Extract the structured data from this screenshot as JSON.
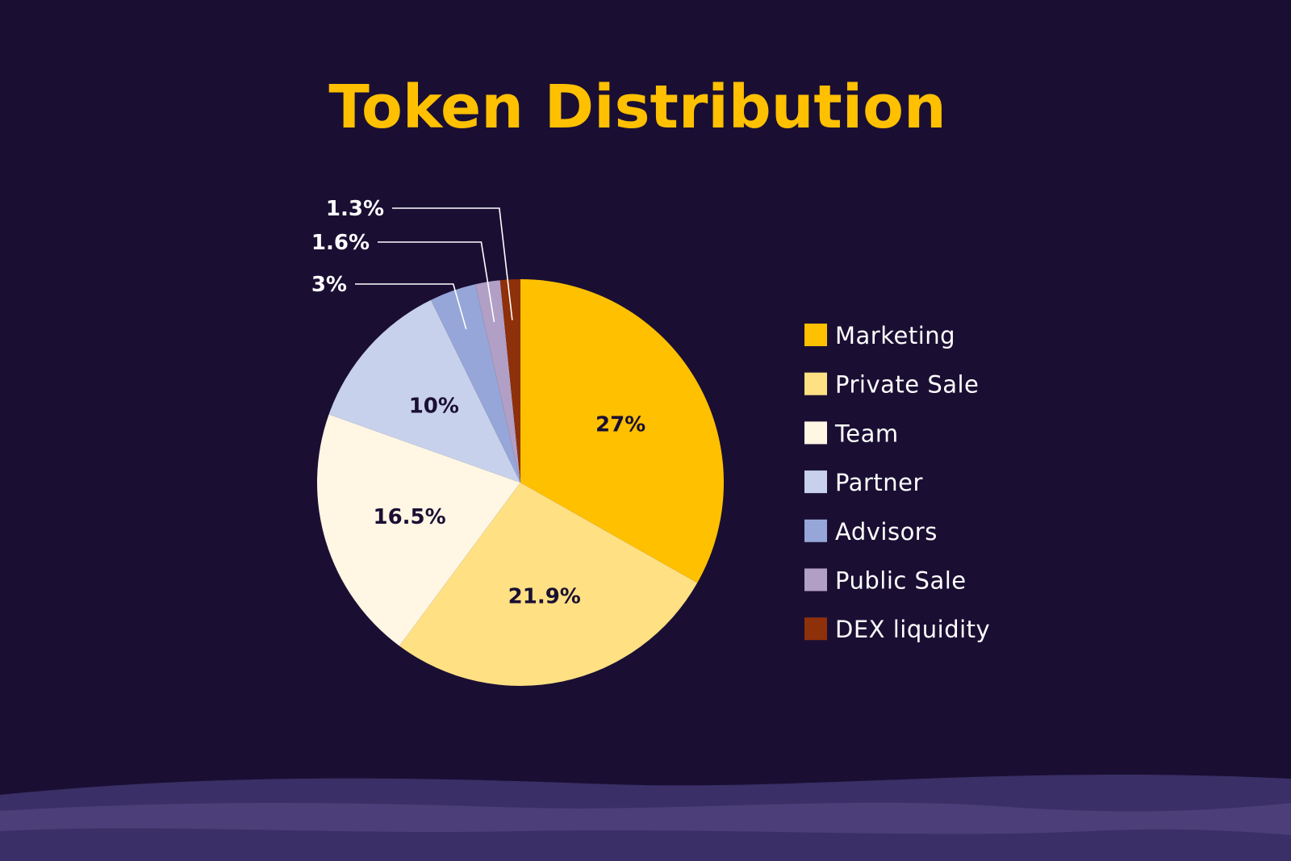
{
  "chart_data": {
    "type": "pie",
    "title": "Token Distribution",
    "legend_position": "right",
    "slices": [
      {
        "name": "Marketing",
        "value": 27,
        "label": "27%",
        "color": "#ffc000"
      },
      {
        "name": "Private Sale",
        "value": 21.9,
        "label": "21.9%",
        "color": "#ffe083"
      },
      {
        "name": "Team",
        "value": 16.5,
        "label": "16.5%",
        "color": "#fff6e4"
      },
      {
        "name": "Partner",
        "value": 10,
        "label": "10%",
        "color": "#c8d1ec"
      },
      {
        "name": "Advisors",
        "value": 3,
        "label": "3%",
        "color": "#96a6d8"
      },
      {
        "name": "Public Sale",
        "value": 1.6,
        "label": "1.6%",
        "color": "#b19fc6"
      },
      {
        "name": "DEX liquidity",
        "value": 1.3,
        "label": "1.3%",
        "color": "#8e300a"
      }
    ]
  },
  "colors": {
    "background": "#1a0f33",
    "title": "#ffc000",
    "hills_back": "#3a2f66",
    "hills_front": "#4b3e79"
  }
}
